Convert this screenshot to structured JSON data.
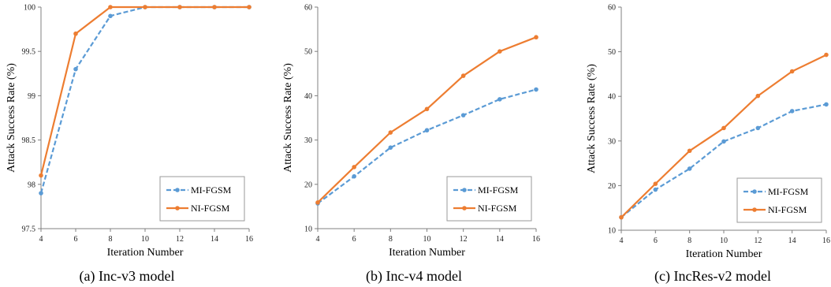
{
  "chart_data": [
    {
      "type": "line",
      "caption": "(a) Inc-v3 model",
      "xlabel": "Iteration Number",
      "ylabel": "Attack Success Rate (%)",
      "x": [
        4,
        6,
        8,
        10,
        12,
        14,
        16
      ],
      "xlim": [
        4,
        16
      ],
      "ylim": [
        97.5,
        100
      ],
      "yticks": [
        "97.5",
        "98",
        "98.5",
        "99",
        "99.5",
        "100"
      ],
      "ytick_values": [
        97.5,
        98,
        98.5,
        99,
        99.5,
        100
      ],
      "legend_position": "bottom-right",
      "series": [
        {
          "name": "MI-FGSM",
          "color": "#5b9bd5",
          "dashed": true,
          "values": [
            97.9,
            99.3,
            99.9,
            100,
            100,
            100,
            100
          ]
        },
        {
          "name": "NI-FGSM",
          "color": "#ed7d31",
          "dashed": false,
          "values": [
            98.1,
            99.7,
            100,
            100,
            100,
            100,
            100
          ]
        }
      ]
    },
    {
      "type": "line",
      "caption": "(b) Inc-v4 model",
      "xlabel": "Iteration Number",
      "ylabel": "Attack Success Rate (%)",
      "x": [
        4,
        6,
        8,
        10,
        12,
        14,
        16
      ],
      "xlim": [
        4,
        16
      ],
      "ylim": [
        10,
        60
      ],
      "yticks": [
        "10",
        "20",
        "30",
        "40",
        "50",
        "60"
      ],
      "ytick_values": [
        10,
        20,
        30,
        40,
        50,
        60
      ],
      "legend_position": "bottom-right",
      "series": [
        {
          "name": "MI-FGSM",
          "color": "#5b9bd5",
          "dashed": true,
          "values": [
            15.7,
            21.8,
            28.3,
            32.2,
            35.6,
            39.2,
            41.4
          ]
        },
        {
          "name": "NI-FGSM",
          "color": "#ed7d31",
          "dashed": false,
          "values": [
            15.9,
            23.9,
            31.7,
            37.0,
            44.5,
            50.0,
            53.2
          ]
        }
      ]
    },
    {
      "type": "line",
      "caption": "(c) IncRes-v2 model",
      "xlabel": "Iteration Number",
      "ylabel": "Attack Success Rate (%)",
      "x": [
        4,
        6,
        8,
        10,
        12,
        14,
        16
      ],
      "xlim": [
        4,
        16
      ],
      "ylim": [
        10,
        60
      ],
      "yticks": [
        "10",
        "20",
        "30",
        "40",
        "50",
        "60"
      ],
      "ytick_values": [
        10,
        20,
        30,
        40,
        50,
        60
      ],
      "legend_position": "bottom-right",
      "series": [
        {
          "name": "MI-FGSM",
          "color": "#5b9bd5",
          "dashed": true,
          "values": [
            12.9,
            19.1,
            23.8,
            29.9,
            32.9,
            36.7,
            38.2
          ]
        },
        {
          "name": "NI-FGSM",
          "color": "#ed7d31",
          "dashed": false,
          "values": [
            12.9,
            20.4,
            27.8,
            32.9,
            40.1,
            45.6,
            49.3
          ]
        }
      ]
    }
  ]
}
